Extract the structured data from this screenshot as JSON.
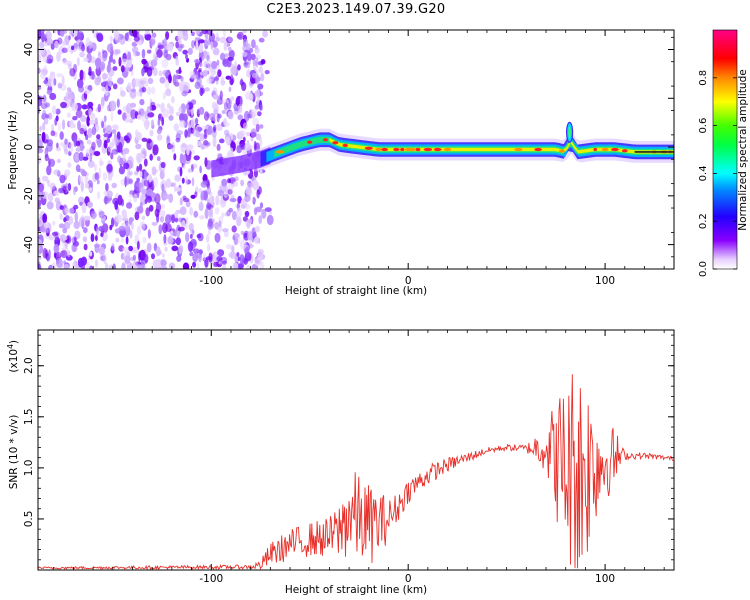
{
  "title": "C2E3.2023.149.07.39.G20",
  "chart_data": [
    {
      "type": "heatmap",
      "name": "spectrogram",
      "xlabel": "Height of straight line (km)",
      "ylabel": "Frequency (Hz)",
      "xlim": [
        -188,
        135
      ],
      "ylim": [
        -50,
        48
      ],
      "xticks": [
        -100,
        0,
        100
      ],
      "xtick_labels": [
        "-100",
        "0",
        "100"
      ],
      "yticks": [
        -40,
        -20,
        0,
        20,
        40
      ],
      "ytick_labels": [
        "-40",
        "-20",
        "0",
        "20",
        "40"
      ],
      "noise_region": [
        -188,
        -74
      ],
      "signal_track": {
        "x": [
          -100,
          -85,
          -75,
          -65,
          -55,
          -45,
          -40,
          -35,
          -25,
          -15,
          -5,
          0,
          20,
          40,
          60,
          75,
          80,
          82,
          86,
          95,
          105,
          115,
          125,
          135
        ],
        "y": [
          -9,
          -7,
          -5,
          -2,
          1,
          3,
          3,
          1,
          0,
          -1,
          -1,
          -1,
          -1,
          -1,
          -1,
          -1,
          -2,
          3,
          -2,
          -1,
          -1,
          -2,
          -2,
          -2
        ]
      },
      "colorbar": {
        "label": "Normalized spectral amplitude",
        "ticks": [
          0.0,
          0.2,
          0.4,
          0.6,
          0.8
        ],
        "tick_labels": [
          "0.0",
          "0.2",
          "0.4",
          "0.6",
          "0.8"
        ],
        "range": [
          0,
          1
        ],
        "colormap": "rainbow (white→violet→blue→cyan→green→yellow→red→magenta)"
      }
    },
    {
      "type": "line",
      "name": "snr",
      "xlabel": "Height of straight line (km)",
      "ylabel": "SNR (10 * v/v)",
      "scale_label": "(x10",
      "scale_exp": "4",
      "scale_close": ")",
      "xlim": [
        -188,
        135
      ],
      "ylim": [
        0,
        2.35
      ],
      "xticks": [
        -100,
        0,
        100
      ],
      "xtick_labels": [
        "-100",
        "0",
        "100"
      ],
      "yticks": [
        0.5,
        1.0,
        1.5,
        2.0
      ],
      "ytick_labels": [
        "0.5",
        "1.0",
        "1.5",
        "2.0"
      ],
      "color": "#e8302a",
      "envelope": {
        "x": [
          -188,
          -80,
          -75,
          -70,
          -60,
          -50,
          -40,
          -35,
          -30,
          -25,
          -20,
          -15,
          -10,
          -5,
          0,
          10,
          20,
          30,
          40,
          50,
          60,
          70,
          75,
          80,
          85,
          90,
          95,
          100,
          105,
          110,
          120,
          135
        ],
        "base": [
          0.02,
          0.03,
          0.05,
          0.15,
          0.25,
          0.3,
          0.32,
          0.38,
          0.55,
          0.5,
          0.45,
          0.45,
          0.5,
          0.62,
          0.78,
          0.93,
          1.03,
          1.1,
          1.17,
          1.2,
          1.19,
          1.21,
          1.1,
          1.0,
          0.95,
          1.0,
          1.05,
          1.07,
          1.1,
          1.12,
          1.12,
          1.09
        ],
        "amp": [
          0.01,
          0.02,
          0.05,
          0.12,
          0.15,
          0.17,
          0.2,
          0.3,
          0.45,
          0.45,
          0.4,
          0.35,
          0.2,
          0.15,
          0.12,
          0.1,
          0.07,
          0.05,
          0.03,
          0.03,
          0.04,
          0.25,
          0.6,
          0.9,
          1.2,
          1.0,
          0.6,
          0.4,
          0.3,
          0.04,
          0.03,
          0.02
        ]
      }
    }
  ]
}
